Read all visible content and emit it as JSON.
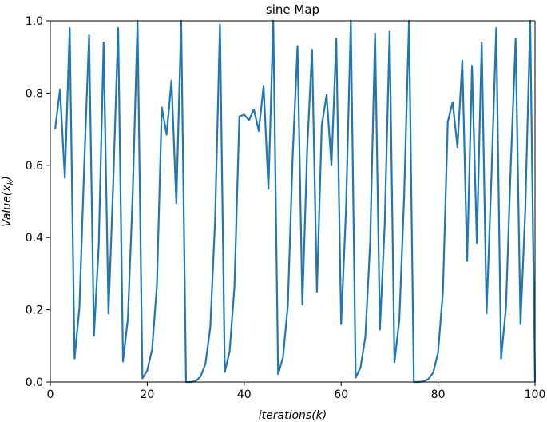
{
  "chart_data": {
    "type": "line",
    "title": "sine Map",
    "xlabel": "iterations(k)",
    "ylabel_base": "Value(x",
    "ylabel_sub": "k",
    "ylabel_close": ")",
    "xlim": [
      0,
      100
    ],
    "ylim": [
      0,
      1.0
    ],
    "xticks": [
      0,
      20,
      40,
      60,
      80,
      100
    ],
    "xtick_labels": [
      "0",
      "20",
      "40",
      "60",
      "80",
      "100"
    ],
    "yticks": [
      0,
      0.2,
      0.4,
      0.6,
      0.8,
      1.0
    ],
    "ytick_labels": [
      "0.0",
      "0.2",
      "0.4",
      "0.6",
      "0.8",
      "1.0"
    ],
    "grid": false,
    "series": [
      {
        "color": "#1f77b4",
        "x": [
          1,
          2,
          3,
          4,
          5,
          6,
          7,
          8,
          9,
          10,
          11,
          12,
          13,
          14,
          15,
          16,
          17,
          18,
          19,
          20,
          21,
          22,
          23,
          24,
          25,
          26,
          27,
          28,
          29,
          30,
          31,
          32,
          33,
          34,
          35,
          36,
          37,
          38,
          39,
          40,
          41,
          42,
          43,
          44,
          45,
          46,
          47,
          48,
          49,
          50,
          51,
          52,
          53,
          54,
          55,
          56,
          57,
          58,
          59,
          60,
          61,
          62,
          63,
          64,
          65,
          66,
          67,
          68,
          69,
          70,
          71,
          72,
          73,
          74,
          75,
          76,
          77,
          78,
          79,
          80,
          81,
          82,
          83,
          84,
          85,
          86,
          87,
          88,
          89,
          90,
          91,
          92,
          93,
          94,
          95,
          96,
          97,
          98,
          99,
          100
        ],
        "y": [
          0.7,
          0.81,
          0.565,
          0.98,
          0.065,
          0.205,
          0.6,
          0.96,
          0.128,
          0.38,
          0.94,
          0.19,
          0.56,
          0.98,
          0.057,
          0.175,
          0.52,
          1.0,
          0.01,
          0.032,
          0.09,
          0.27,
          0.76,
          0.685,
          0.835,
          0.495,
          1.0,
          0.0,
          0.0,
          0.003,
          0.015,
          0.05,
          0.15,
          0.45,
          0.99,
          0.028,
          0.085,
          0.265,
          0.735,
          0.74,
          0.725,
          0.755,
          0.695,
          0.82,
          0.535,
          1.0,
          0.022,
          0.068,
          0.21,
          0.625,
          0.93,
          0.215,
          0.645,
          0.92,
          0.25,
          0.71,
          0.795,
          0.6,
          0.95,
          0.16,
          0.475,
          1.0,
          0.012,
          0.04,
          0.125,
          0.39,
          0.965,
          0.145,
          0.44,
          0.97,
          0.055,
          0.17,
          0.515,
          1.0,
          0.0,
          0.0,
          0.002,
          0.008,
          0.026,
          0.082,
          0.25,
          0.72,
          0.775,
          0.65,
          0.89,
          0.335,
          0.875,
          0.385,
          0.94,
          0.19,
          0.565,
          0.98,
          0.065,
          0.205,
          0.6,
          0.95,
          0.16,
          0.48,
          1.0,
          0.0
        ]
      }
    ]
  }
}
